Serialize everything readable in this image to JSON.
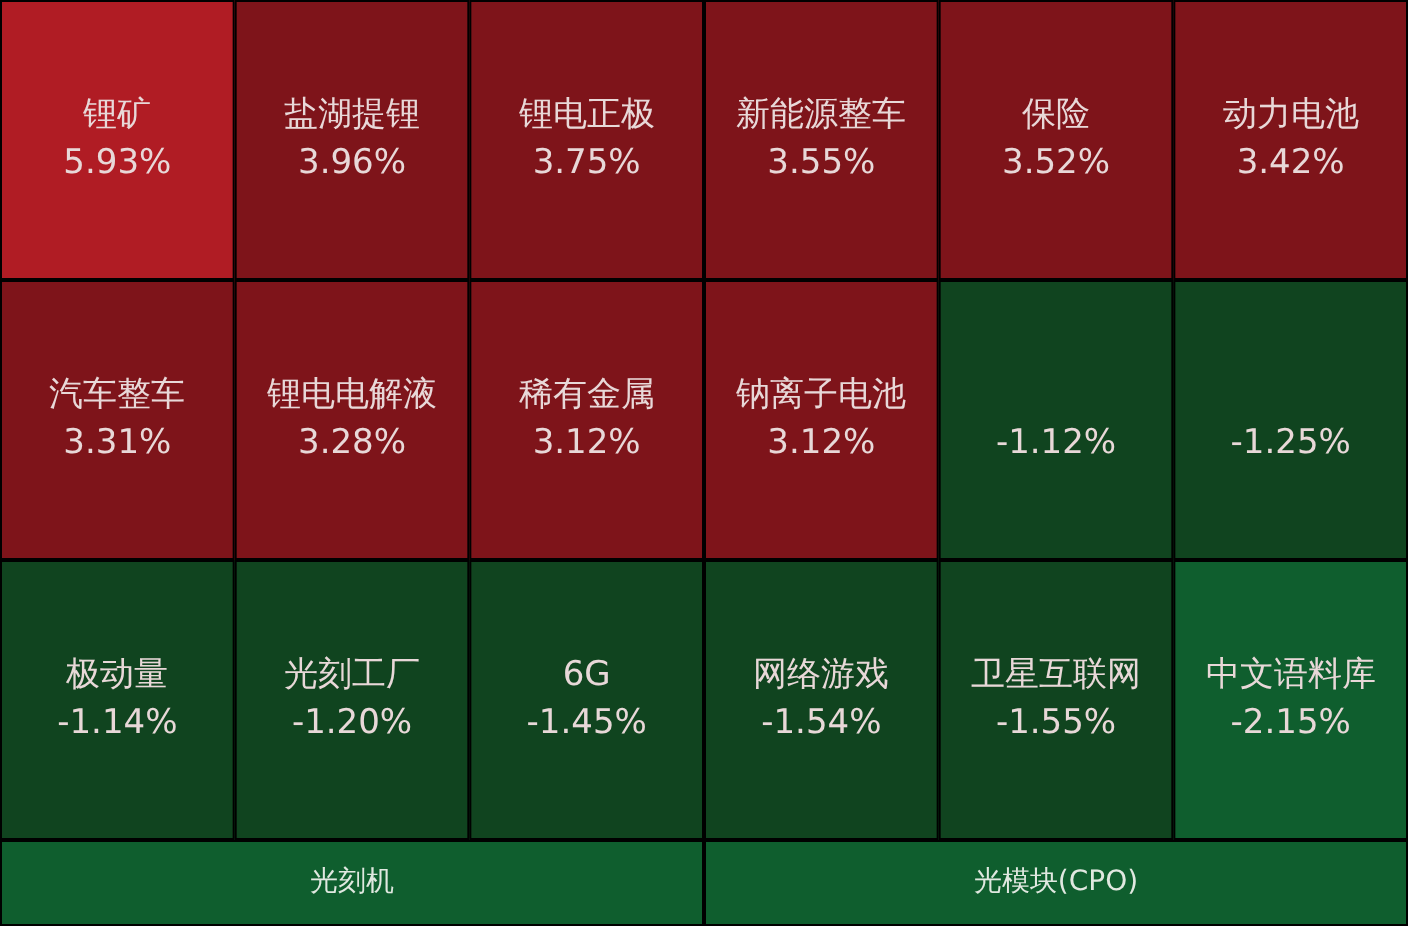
{
  "chart_data": {
    "type": "other",
    "categories": [
      "锂矿",
      "盐湖提锂",
      "锂电正极",
      "新能源整车",
      "保险",
      "动力电池",
      "汽车整车",
      "锂电电解液",
      "稀有金属",
      "钠离子电池",
      null,
      null,
      "极动量",
      "光刻工厂",
      "6G",
      "网络游戏",
      "卫星互联网",
      "中文语料库",
      "光刻机",
      "光模块(CPO)"
    ],
    "values": [
      5.93,
      3.96,
      3.75,
      3.55,
      3.52,
      3.42,
      3.31,
      3.28,
      3.12,
      3.12,
      -1.12,
      -1.25,
      -1.14,
      -1.2,
      -1.45,
      -1.54,
      -1.55,
      -2.15,
      null,
      null
    ],
    "value_labels": [
      "5.93%",
      "3.96%",
      "3.75%",
      "3.55%",
      "3.52%",
      "3.42%",
      "3.31%",
      "3.28%",
      "3.12%",
      "3.12%",
      "-1.12%",
      "-1.25%",
      "-1.14%",
      "-1.20%",
      "-1.45%",
      "-1.54%",
      "-1.55%",
      "-2.15%",
      null,
      null
    ],
    "colors": [
      "#b01c24",
      "#7e141a",
      "#7e141a",
      "#7e141a",
      "#7e141a",
      "#7e141a",
      "#7e141a",
      "#7e141a",
      "#7e141a",
      "#7e141a",
      "#10441f",
      "#10441f",
      "#10441f",
      "#10441f",
      "#10441f",
      "#10441f",
      "#10441f",
      "#0f5e2e",
      "#0f5e2e",
      "#0f5e2e"
    ]
  }
}
